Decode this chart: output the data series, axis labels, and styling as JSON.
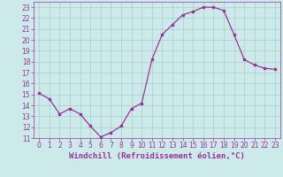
{
  "x": [
    0,
    1,
    2,
    3,
    4,
    5,
    6,
    7,
    8,
    9,
    10,
    11,
    12,
    13,
    14,
    15,
    16,
    17,
    18,
    19,
    20,
    21,
    22,
    23
  ],
  "y": [
    15.1,
    14.6,
    13.2,
    13.7,
    13.2,
    12.1,
    11.1,
    11.5,
    12.1,
    13.7,
    14.2,
    18.2,
    20.5,
    21.4,
    22.3,
    22.6,
    23.0,
    23.0,
    22.7,
    20.5,
    18.2,
    17.7,
    17.4,
    17.3
  ],
  "xlabel": "Windchill (Refroidissement éolien,°C)",
  "xlim": [
    -0.5,
    23.5
  ],
  "ylim": [
    11,
    23.5
  ],
  "yticks": [
    11,
    12,
    13,
    14,
    15,
    16,
    17,
    18,
    19,
    20,
    21,
    22,
    23
  ],
  "xticks": [
    0,
    1,
    2,
    3,
    4,
    5,
    6,
    7,
    8,
    9,
    10,
    11,
    12,
    13,
    14,
    15,
    16,
    17,
    18,
    19,
    20,
    21,
    22,
    23
  ],
  "line_color": "#993399",
  "marker": "s",
  "marker_size": 1.8,
  "bg_color": "#cceaea",
  "grid_color": "#aacccc",
  "tick_color": "#993399",
  "label_color": "#993399",
  "xlabel_fontsize": 6.5,
  "tick_fontsize": 5.5
}
